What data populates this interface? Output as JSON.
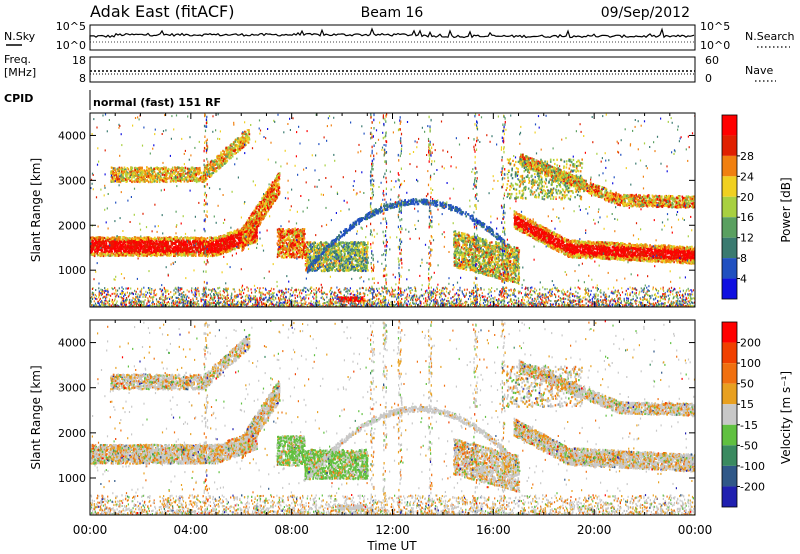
{
  "header": {
    "station": "Adak East (fitACF)",
    "beam": "Beam 16",
    "date": "09/Sep/2012"
  },
  "top_panels": {
    "nsky_label": "N.Sky",
    "nsearch_label": "N.Search",
    "noise_ticks": [
      "10^5",
      "10^0"
    ],
    "freq_label": "Freq.",
    "freq_unit": "[MHz]",
    "freq_ticks": [
      "18",
      "8"
    ],
    "nave_label": "Nave",
    "nave_ticks": [
      "60",
      "0"
    ],
    "cpid_label": "CPID",
    "cpid_value": "normal (fast) 151 RF"
  },
  "chart_data": [
    {
      "type": "heatmap",
      "panel": "power",
      "ylabel": "Slant Range [km]",
      "xlabel": "Time UT",
      "ylim": [
        180,
        4500
      ],
      "xlim": [
        0,
        24
      ],
      "y_ticks": [
        "1000",
        "2000",
        "3000",
        "4000"
      ],
      "x_ticks": [
        "00:00",
        "04:00",
        "08:00",
        "12:00",
        "16:00",
        "20:00",
        "00:00"
      ],
      "colorbar": {
        "label": "Power [dB]",
        "ticks": [
          "4",
          "8",
          "12",
          "16",
          "20",
          "24",
          "28"
        ],
        "colors": [
          "#1010e0",
          "#2050c0",
          "#3a7a70",
          "#5aa060",
          "#a8d040",
          "#f0d020",
          "#f08010",
          "#e02000",
          "#ff0000"
        ]
      }
    },
    {
      "type": "heatmap",
      "panel": "velocity",
      "ylabel": "Slant Range [km]",
      "xlabel": "Time UT",
      "ylim": [
        180,
        4500
      ],
      "xlim": [
        0,
        24
      ],
      "y_ticks": [
        "1000",
        "2000",
        "3000",
        "4000"
      ],
      "x_ticks": [
        "00:00",
        "04:00",
        "08:00",
        "12:00",
        "16:00",
        "20:00",
        "00:00"
      ],
      "colorbar": {
        "label": "Velocity [m s⁻¹]",
        "ticks": [
          "200",
          "100",
          "50",
          "15",
          "-15",
          "-50",
          "-100",
          "-200"
        ],
        "colors": [
          "#2020b0",
          "#305888",
          "#3a8a60",
          "#60c040",
          "#c8c8c8",
          "#e8a020",
          "#f07010",
          "#f04000",
          "#ff0000"
        ]
      }
    }
  ]
}
